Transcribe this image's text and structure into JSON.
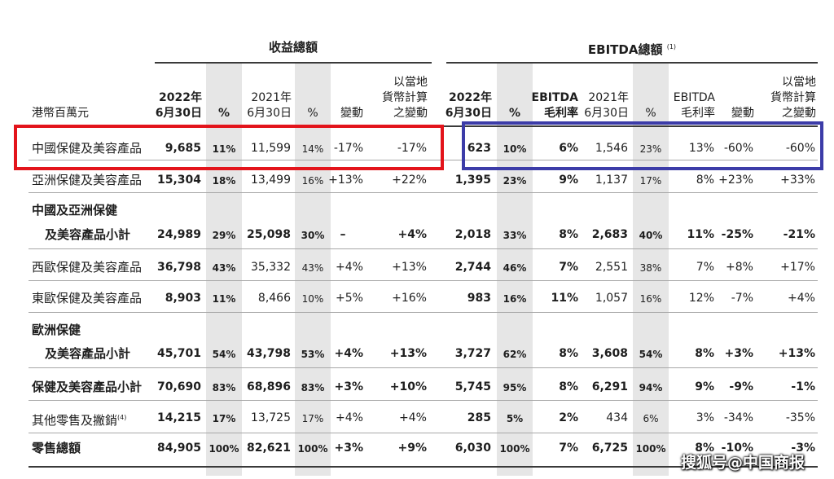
{
  "headers": {
    "revenue_group": "收益總額",
    "ebitda_group": "EBITDA總額",
    "ebitda_note": "(1)",
    "unit": "港幣百萬元",
    "rev_2022": "2022年\n6月30日",
    "rev_pct1": "%",
    "rev_2021": "2021年\n6月30日",
    "rev_pct2": "%",
    "rev_change": "變動",
    "rev_local": "以當地\n貨幣計算\n之變動",
    "eb_2022": "2022年\n6月30日",
    "eb_pct1": "%",
    "eb_margin1": "EBITDA\n毛利率",
    "eb_2021": "2021年\n6月30日",
    "eb_pct2": "%",
    "eb_margin2": "EBITDA\n毛利率",
    "eb_change": "變動",
    "eb_local": "以當地\n貨幣計算\n之變動"
  },
  "rows": [
    {
      "label": "中國保健及美容產品",
      "label2": "",
      "bold": false,
      "v": [
        "9,685",
        "11%",
        "11,599",
        "14%",
        "-17%",
        "-17%",
        "623",
        "10%",
        "6%",
        "1,546",
        "23%",
        "13%",
        "-60%",
        "-60%"
      ]
    },
    {
      "label": "亞洲保健及美容產品",
      "label2": "",
      "bold": false,
      "v": [
        "15,304",
        "18%",
        "13,499",
        "16%",
        "+13%",
        "+22%",
        "1,395",
        "23%",
        "9%",
        "1,137",
        "17%",
        "8%",
        "+23%",
        "+33%"
      ]
    },
    {
      "label": "中國及亞洲保健",
      "label2": "及美容產品小計",
      "bold": true,
      "v": [
        "24,989",
        "29%",
        "25,098",
        "30%",
        "–",
        "+4%",
        "2,018",
        "33%",
        "8%",
        "2,683",
        "40%",
        "11%",
        "-25%",
        "-21%"
      ]
    },
    {
      "label": "西歐保健及美容產品",
      "label2": "",
      "bold": false,
      "v": [
        "36,798",
        "43%",
        "35,332",
        "43%",
        "+4%",
        "+13%",
        "2,744",
        "46%",
        "7%",
        "2,551",
        "38%",
        "7%",
        "+8%",
        "+17%"
      ]
    },
    {
      "label": "東歐保健及美容產品",
      "label2": "",
      "bold": false,
      "v": [
        "8,903",
        "11%",
        "8,466",
        "10%",
        "+5%",
        "+16%",
        "983",
        "16%",
        "11%",
        "1,057",
        "16%",
        "12%",
        "-7%",
        "+4%"
      ]
    },
    {
      "label": "歐洲保健",
      "label2": "及美容產品小計",
      "bold": true,
      "v": [
        "45,701",
        "54%",
        "43,798",
        "53%",
        "+4%",
        "+13%",
        "3,727",
        "62%",
        "8%",
        "3,608",
        "54%",
        "8%",
        "+3%",
        "+13%"
      ]
    },
    {
      "label": "保健及美容產品小計",
      "label2": "",
      "bold": true,
      "v": [
        "70,690",
        "83%",
        "68,896",
        "83%",
        "+3%",
        "+10%",
        "5,745",
        "95%",
        "8%",
        "6,291",
        "94%",
        "9%",
        "-9%",
        "-1%"
      ]
    },
    {
      "label": "其他零售及撇銷",
      "label2": "",
      "note": "(4)",
      "bold": false,
      "v": [
        "14,215",
        "17%",
        "13,725",
        "17%",
        "+4%",
        "+4%",
        "285",
        "5%",
        "2%",
        "434",
        "6%",
        "3%",
        "-34%",
        "-35%"
      ]
    },
    {
      "label": "零售總額",
      "label2": "",
      "bold": true,
      "v": [
        "84,905",
        "100%",
        "82,621",
        "100%",
        "+3%",
        "+9%",
        "6,030",
        "100%",
        "7%",
        "6,725",
        "100%",
        "8%",
        "-10%",
        "-3%"
      ]
    }
  ],
  "highlights": {
    "revenue_box_color": "#e3141b",
    "ebitda_box_color": "#3c3ca8"
  },
  "watermark": "搜狐号@中国商报"
}
